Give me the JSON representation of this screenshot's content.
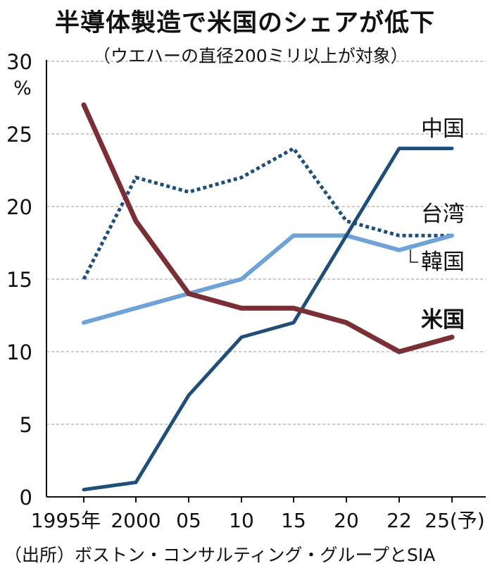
{
  "title": "半導体製造で米国のシェアが低下",
  "subtitle": "（ウエハーの直径200ミリ以上が対象）",
  "source": "（出所）ボストン・コンサルティング・グループとSIA",
  "y_unit": "%",
  "chart_data": {
    "type": "line",
    "title": "半導体製造で米国のシェアが低下",
    "subtitle": "（ウエハーの直径200ミリ以上が対象）",
    "x_labels": [
      "1995年",
      "2000",
      "05",
      "10",
      "15",
      "20",
      "22",
      "25(予)"
    ],
    "x": [
      1995,
      2000,
      2005,
      2010,
      2015,
      2020,
      2022,
      2025
    ],
    "ylim": [
      0,
      30
    ],
    "yticks": [
      0,
      5,
      10,
      15,
      20,
      25,
      30
    ],
    "ylabel": "%",
    "grid": true,
    "series": [
      {
        "name": "中国",
        "color": "#1f4e79",
        "style": "solid",
        "bold_label": false,
        "values": [
          0.5,
          1,
          7,
          11,
          12,
          18,
          24,
          24
        ]
      },
      {
        "name": "台湾",
        "color": "#1f4e79",
        "style": "dotted",
        "bold_label": false,
        "values": [
          15,
          22,
          21,
          22,
          24,
          19,
          18,
          18
        ]
      },
      {
        "name": "韓国",
        "color": "#6fa3d8",
        "style": "solid",
        "bold_label": false,
        "values": [
          12,
          13,
          14,
          15,
          18,
          18,
          17,
          18
        ]
      },
      {
        "name": "米国",
        "color": "#7a2e35",
        "style": "solid",
        "bold_label": true,
        "values": [
          27,
          19,
          14,
          13,
          13,
          12,
          10,
          11
        ]
      }
    ]
  }
}
